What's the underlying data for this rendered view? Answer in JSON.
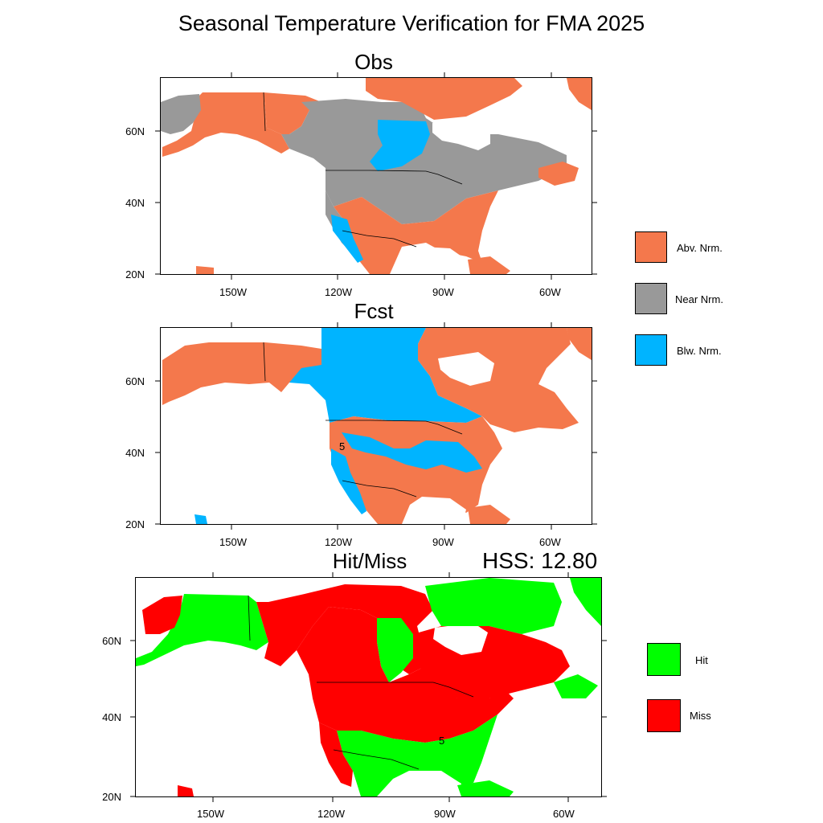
{
  "title": "Seasonal Temperature Verification for FMA 2025",
  "panels": {
    "obs": {
      "title": "Obs",
      "lat_labels": [
        "60N",
        "40N",
        "20N"
      ],
      "lon_labels": [
        "150W",
        "120W",
        "90W",
        "60W"
      ]
    },
    "fcst": {
      "title": "Fcst",
      "lat_labels": [
        "60N",
        "40N",
        "20N"
      ],
      "lon_labels": [
        "150W",
        "120W",
        "90W",
        "60W"
      ],
      "contour_label": "5"
    },
    "hitmiss": {
      "title": "Hit/Miss",
      "hss_text": "HSS: 12.80",
      "lat_labels": [
        "60N",
        "40N",
        "20N"
      ],
      "lon_labels": [
        "150W",
        "120W",
        "90W",
        "60W"
      ],
      "contour_label": "5"
    }
  },
  "legends": {
    "categories": [
      {
        "label": "Abv. Nrm.",
        "color": "#f4784c"
      },
      {
        "label": "Near Nrm.",
        "color": "#999999"
      },
      {
        "label": "Blw. Nrm.",
        "color": "#00b4ff"
      }
    ],
    "verification": [
      {
        "label": "Hit",
        "color": "#00ff00"
      },
      {
        "label": "Miss",
        "color": "#ff0000"
      }
    ]
  },
  "colors": {
    "above": "#f4784c",
    "near": "#999999",
    "below": "#00b4ff",
    "hit": "#00ff00",
    "miss": "#ff0000",
    "water": "#ffffff",
    "border": "#000000"
  }
}
